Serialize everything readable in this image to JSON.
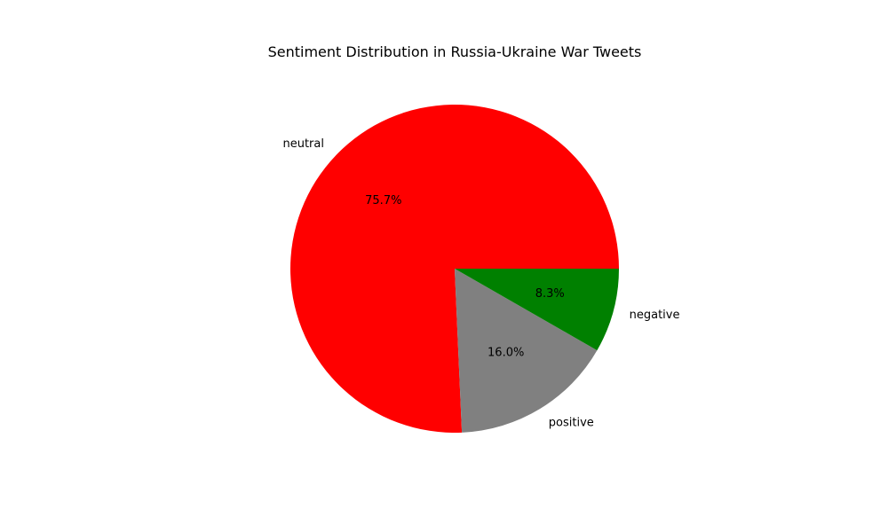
{
  "chart_data": {
    "type": "pie",
    "title": "Sentiment Distribution in Russia-Ukraine War Tweets",
    "slices": [
      {
        "label": "neutral",
        "value": 75.7,
        "pct_text": "75.7%",
        "color": "#ff0000"
      },
      {
        "label": "positive",
        "value": 16.0,
        "pct_text": "16.0%",
        "color": "#808080"
      },
      {
        "label": "negative",
        "value": 8.3,
        "pct_text": "8.3%",
        "color": "#008000"
      }
    ],
    "start_angle_deg": 0,
    "direction": "counterclockwise",
    "legend": "none"
  }
}
